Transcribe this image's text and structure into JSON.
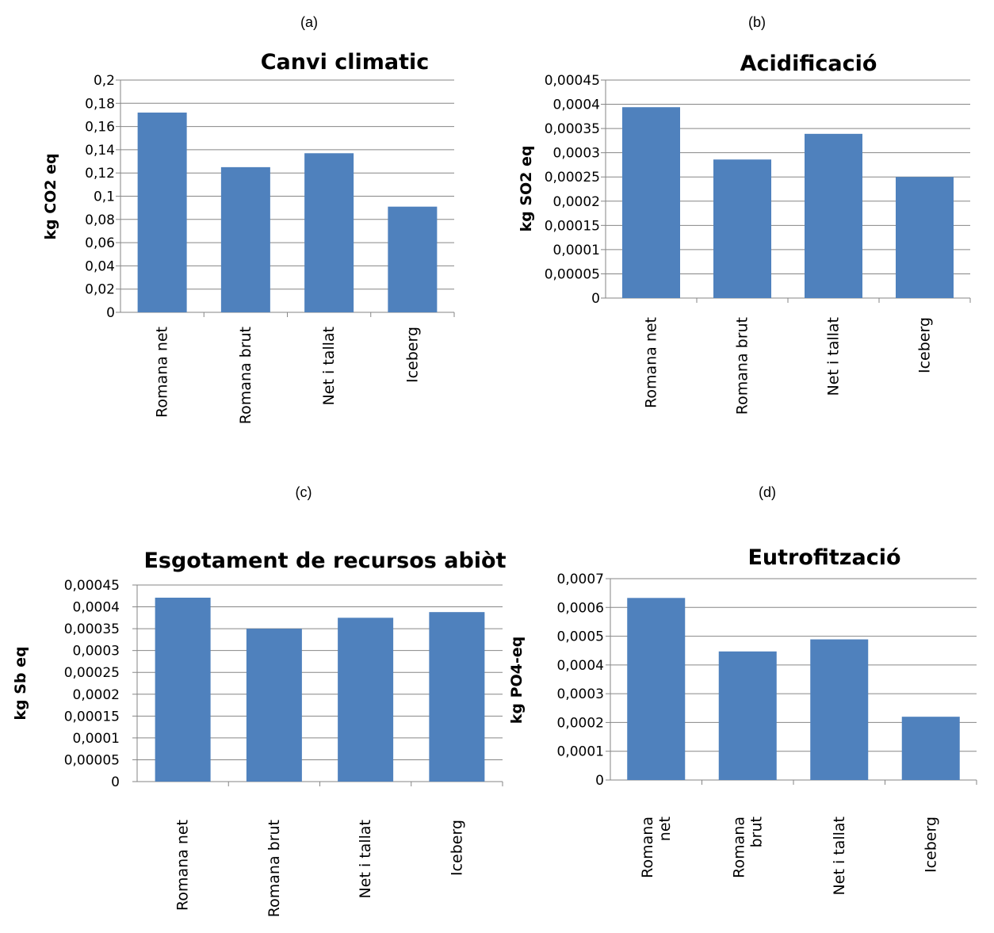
{
  "panel_labels": [
    "(a)",
    "(b)",
    "(c)",
    "(d)"
  ],
  "colors": {
    "bar": "#4f81bd",
    "grid": "#868686",
    "axis": "#868686",
    "text": "#000000"
  },
  "chart_data": [
    {
      "type": "bar",
      "title": "Canvi climatic",
      "ylabel": "kg CO2 eq",
      "xlabel": "",
      "categories": [
        "Romana net",
        "Romana brut",
        "Net i tallat",
        "Iceberg"
      ],
      "values": [
        0.172,
        0.125,
        0.137,
        0.091
      ],
      "ylim": [
        0,
        0.2
      ],
      "yticks": [
        "0",
        "0,02",
        "0,04",
        "0,06",
        "0,08",
        "0,1",
        "0,12",
        "0,14",
        "0,16",
        "0,18",
        "0,2"
      ],
      "grid": true,
      "legend": "none"
    },
    {
      "type": "bar",
      "title": "Acidificació",
      "ylabel": "kg SO2 eq",
      "xlabel": "",
      "categories": [
        "Romana net",
        "Romana brut",
        "Net i tallat",
        "Iceberg"
      ],
      "values": [
        0.000394,
        0.000286,
        0.000339,
        0.00025
      ],
      "ylim": [
        0,
        0.00045
      ],
      "yticks": [
        "0",
        "0,00005",
        "0,0001",
        "0,00015",
        "0,0002",
        "0,00025",
        "0,0003",
        "0,00035",
        "0,0004",
        "0,00045"
      ],
      "grid": true,
      "legend": "none"
    },
    {
      "type": "bar",
      "title": "Esgotament de recursos abiòt",
      "ylabel": "kg Sb eq",
      "xlabel": "",
      "categories": [
        "Romana net",
        "Romana brut",
        "Net i tallat",
        "Iceberg"
      ],
      "values": [
        0.000421,
        0.00035,
        0.000375,
        0.000388
      ],
      "ylim": [
        0,
        0.00045
      ],
      "yticks": [
        "0",
        "0,00005",
        "0,0001",
        "0,00015",
        "0,0002",
        "0,00025",
        "0,0003",
        "0,00035",
        "0,0004",
        "0,00045"
      ],
      "grid": true,
      "legend": "none"
    },
    {
      "type": "bar",
      "title": "Eutrofització",
      "ylabel": "kg PO4-eq",
      "xlabel": "",
      "categories": [
        [
          "Romana",
          "net"
        ],
        [
          "Romana",
          "brut"
        ],
        [
          "Net i tallat"
        ],
        [
          "Iceberg"
        ]
      ],
      "values": [
        0.000633,
        0.000447,
        0.000489,
        0.00022
      ],
      "ylim": [
        0,
        0.0007
      ],
      "yticks": [
        "0",
        "0,0001",
        "0,0002",
        "0,0003",
        "0,0004",
        "0,0005",
        "0,0006",
        "0,0007"
      ],
      "grid": true,
      "legend": "none"
    }
  ]
}
